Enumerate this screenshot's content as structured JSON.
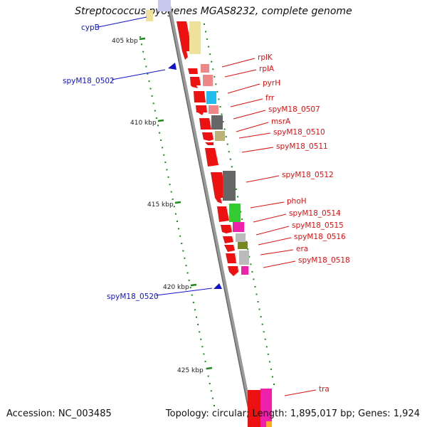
{
  "title": "Streptococcus pyogenes MGAS8232, complete genome",
  "footer": {
    "accession": "Accession: NC_003485",
    "topology": "Topology: circular; Length: 1,895,017 bp; Genes: 1,924"
  },
  "colors": {
    "backbone": "#8a8a8a",
    "tick": "#1a8a1a",
    "forward_gene": "#ee1111",
    "label_red": "#dd1111",
    "label_blue": "#1111cc"
  },
  "ticks": [
    {
      "label": "405 kbp",
      "major": true
    },
    {
      "label": "410 kbp",
      "major": true
    },
    {
      "label": "415 kbp",
      "major": true
    },
    {
      "label": "420 kbp",
      "major": true
    },
    {
      "label": "425 kbp",
      "major": true
    }
  ],
  "red_labels": [
    {
      "text": "rplK"
    },
    {
      "text": "rplA"
    },
    {
      "text": "pyrH"
    },
    {
      "text": "frr"
    },
    {
      "text": "spyM18_0507"
    },
    {
      "text": "msrA"
    },
    {
      "text": "spyM18_0510"
    },
    {
      "text": "spyM18_0511"
    },
    {
      "text": "spyM18_0512"
    },
    {
      "text": "phoH"
    },
    {
      "text": "spyM18_0514"
    },
    {
      "text": "spyM18_0515"
    },
    {
      "text": "spyM18_0516"
    },
    {
      "text": "era"
    },
    {
      "text": "spyM18_0518"
    },
    {
      "text": "tra"
    }
  ],
  "blue_labels": [
    {
      "text": "cypB"
    },
    {
      "text": "spyM18_0502"
    },
    {
      "text": "spyM18_0520"
    }
  ]
}
